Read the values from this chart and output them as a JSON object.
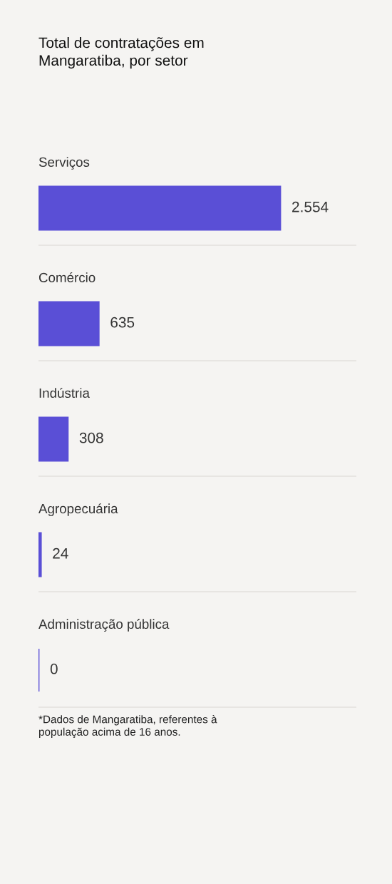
{
  "chart_data": {
    "type": "bar",
    "orientation": "horizontal",
    "title": "Total de contratações em\nMangaratiba, por setor",
    "categories": [
      "Serviços",
      "Comércio",
      "Indústria",
      "Agropecuária",
      "Administração pública"
    ],
    "values": [
      2554,
      635,
      308,
      24,
      0
    ],
    "value_labels": [
      "2.554",
      "635",
      "308",
      "24",
      "0"
    ],
    "color": "#5a4fd6",
    "tick_labels": false,
    "annotations": [
      "*Dados de Mangaratiba, referentes à\npopulação acima de 16 anos."
    ]
  }
}
